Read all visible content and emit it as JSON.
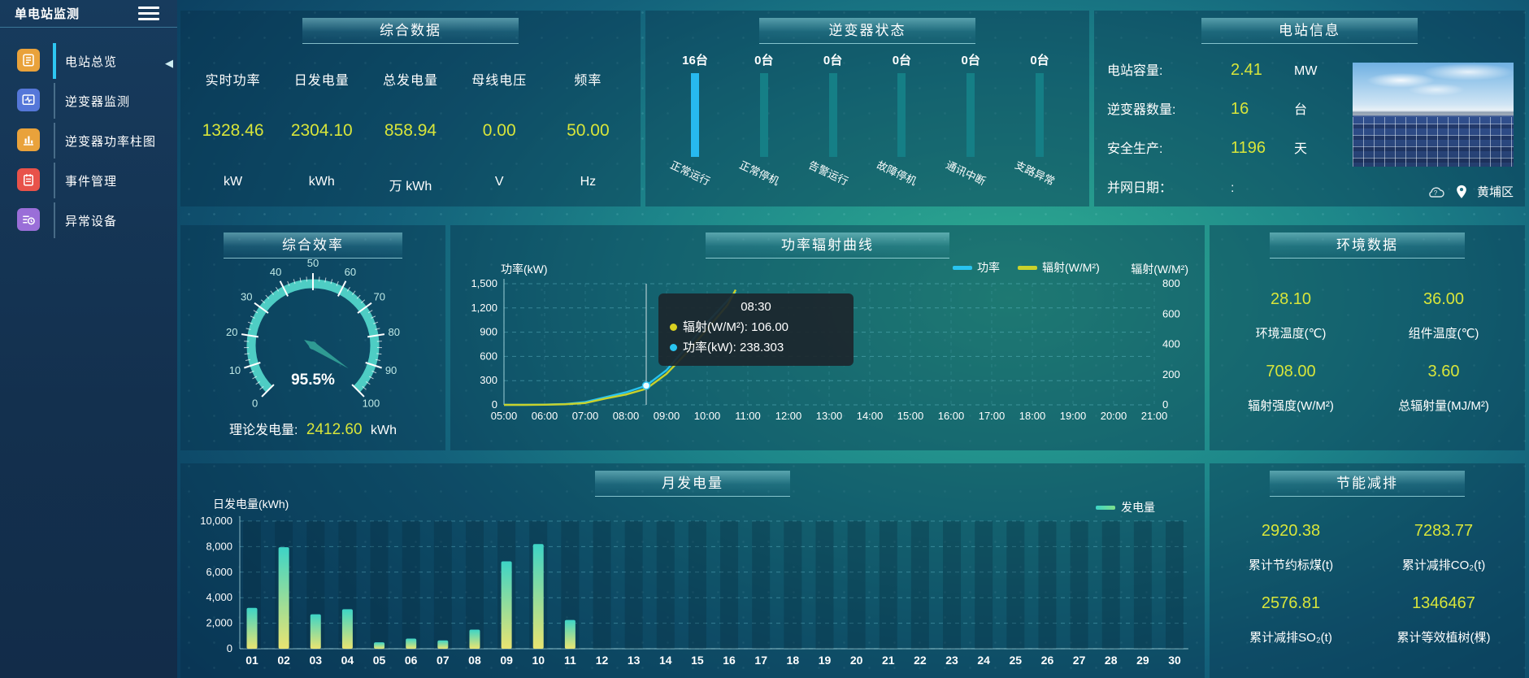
{
  "app": {
    "title": "单电站监测"
  },
  "sidebar": {
    "items": [
      {
        "label": "电站总览",
        "icon": "overview",
        "color": "#e9a23b",
        "active": true
      },
      {
        "label": "逆变器监测",
        "icon": "inverter-monitor",
        "color": "#5577d9",
        "active": false
      },
      {
        "label": "逆变器功率柱图",
        "icon": "power-bars",
        "color": "#e9a23b",
        "active": false
      },
      {
        "label": "事件管理",
        "icon": "events",
        "color": "#e8524a",
        "active": false
      },
      {
        "label": "异常设备",
        "icon": "abnormal-devices",
        "color": "#9a6ed8",
        "active": false
      }
    ]
  },
  "colors": {
    "accent_cyan": "#29c4f0",
    "value_yellow": "#d8e53a",
    "inverter_idle": "#157f86",
    "inverter_active": "#27b9ef",
    "gauge": "#4ecdc4",
    "line_power": "#29c4f0",
    "line_radiation": "#c9d22b",
    "bar_gradient_top": "#3dd4c6",
    "bar_gradient_bottom": "#e9e471",
    "tooltip_dot_radiation": "#d9d021",
    "tooltip_dot_power": "#29c4f0"
  },
  "panels": {
    "summary": {
      "title": "综合数据",
      "metrics": [
        {
          "label": "实时功率",
          "value": "1328.46",
          "unit": "kW"
        },
        {
          "label": "日发电量",
          "value": "2304.10",
          "unit": "kWh"
        },
        {
          "label": "总发电量",
          "value": "858.94",
          "unit": "万 kWh"
        },
        {
          "label": "母线电压",
          "value": "0.00",
          "unit": "V"
        },
        {
          "label": "频率",
          "value": "50.00",
          "unit": "Hz"
        }
      ]
    },
    "inverter_status": {
      "title": "逆变器状态",
      "items": [
        {
          "count": "16台",
          "label": "正常运行",
          "highlight": true
        },
        {
          "count": "0台",
          "label": "正常停机",
          "highlight": false
        },
        {
          "count": "0台",
          "label": "告警运行",
          "highlight": false
        },
        {
          "count": "0台",
          "label": "故障停机",
          "highlight": false
        },
        {
          "count": "0台",
          "label": "通讯中断",
          "highlight": false
        },
        {
          "count": "0台",
          "label": "支路异常",
          "highlight": false
        }
      ]
    },
    "station_info": {
      "title": "电站信息",
      "rows": [
        {
          "label": "电站容量:",
          "value": "2.41",
          "unit": "MW",
          "plain": false
        },
        {
          "label": "逆变器数量:",
          "value": "16",
          "unit": "台",
          "plain": false
        },
        {
          "label": "安全生产:",
          "value": "1196",
          "unit": "天",
          "plain": false
        },
        {
          "label": "并网日期：",
          "value": ":",
          "unit": "",
          "plain": true
        }
      ],
      "location": "黄埔区"
    },
    "efficiency": {
      "title": "综合效率",
      "footer_label": "理论发电量:",
      "footer_value": "2412.60",
      "footer_unit": "kWh"
    },
    "power_curve": {
      "title": "功率辐射曲线",
      "left_axis_name": "功率(kW)",
      "right_axis_name": "辐射(W/M²)",
      "tooltip": {
        "time": "08:30",
        "rows": [
          {
            "name": "辐射(W/M²)",
            "value": "106.00"
          },
          {
            "name": "功率(kW)",
            "value": "238.303"
          }
        ]
      }
    },
    "environment": {
      "title": "环境数据",
      "metrics": [
        {
          "value": "28.10",
          "label": "环境温度(℃)"
        },
        {
          "value": "36.00",
          "label": "组件温度(℃)"
        },
        {
          "value": "708.00",
          "label": "辐射强度(W/M²)"
        },
        {
          "value": "3.60",
          "label": "总辐射量(MJ/M²)"
        }
      ]
    },
    "monthly": {
      "title": "月发电量",
      "ylabel": "日发电量(kWh)",
      "legend": "发电量"
    },
    "saving": {
      "title": "节能减排",
      "metrics": [
        {
          "value": "2920.38",
          "label": "累计节约标煤(t)"
        },
        {
          "value": "7283.77",
          "label": "累计减排CO₂(t)"
        },
        {
          "value": "2576.81",
          "label": "累计减排SO₂(t)"
        },
        {
          "value": "1346467",
          "label": "累计等效植树(棵)"
        }
      ]
    }
  },
  "chart_data": [
    {
      "id": "efficiency_gauge",
      "type": "gauge",
      "title": "综合效率",
      "value": 95.5,
      "unit": "%",
      "min": 0,
      "max": 100,
      "tick_step": 10
    },
    {
      "id": "power_radiation",
      "type": "line",
      "title": "功率辐射曲线",
      "x_ticks": [
        "05:00",
        "06:00",
        "07:00",
        "08:00",
        "09:00",
        "10:00",
        "11:00",
        "12:00",
        "13:00",
        "14:00",
        "15:00",
        "16:00",
        "17:00",
        "18:00",
        "19:00",
        "20:00",
        "21:00"
      ],
      "x_range_hours": [
        5,
        21
      ],
      "left_axis": {
        "name": "功率(kW)",
        "min": 0,
        "max": 1500,
        "ticks": [
          0,
          300,
          600,
          900,
          1200,
          1500
        ]
      },
      "right_axis": {
        "name": "辐射(W/M²)",
        "min": 0,
        "max": 800,
        "ticks": [
          0,
          200,
          400,
          600,
          800
        ]
      },
      "legend_position": "top-right",
      "grid": true,
      "series": [
        {
          "name": "功率",
          "axis": "left",
          "points": [
            [
              5,
              0
            ],
            [
              5.5,
              1
            ],
            [
              6,
              3
            ],
            [
              6.5,
              10
            ],
            [
              7,
              35
            ],
            [
              7.5,
              95
            ],
            [
              8,
              155
            ],
            [
              8.5,
              238.303
            ],
            [
              9,
              430
            ],
            [
              9.5,
              720
            ],
            [
              10,
              1020
            ],
            [
              10.5,
              1290
            ],
            [
              10.7,
              1400
            ]
          ]
        },
        {
          "name": "辐射(W/M²)",
          "axis": "right",
          "points": [
            [
              5,
              0
            ],
            [
              5.5,
              0
            ],
            [
              6,
              1
            ],
            [
              6.5,
              4
            ],
            [
              7,
              12
            ],
            [
              7.5,
              42
            ],
            [
              8,
              68
            ],
            [
              8.5,
              106
            ],
            [
              9,
              205
            ],
            [
              9.5,
              345
            ],
            [
              10,
              500
            ],
            [
              10.5,
              660
            ],
            [
              10.7,
              760
            ]
          ]
        }
      ],
      "hover": {
        "x": 8.5,
        "power": 238.303,
        "radiation": 106.0
      }
    },
    {
      "id": "monthly_energy",
      "type": "bar",
      "title": "月发电量",
      "ylabel": "日发电量(kWh)",
      "ylim": [
        0,
        10000
      ],
      "yticks": [
        0,
        2000,
        4000,
        6000,
        8000,
        10000
      ],
      "categories": [
        "01",
        "02",
        "03",
        "04",
        "05",
        "06",
        "07",
        "08",
        "09",
        "10",
        "11",
        "12",
        "13",
        "14",
        "15",
        "16",
        "17",
        "18",
        "19",
        "20",
        "21",
        "22",
        "23",
        "24",
        "25",
        "26",
        "27",
        "28",
        "29",
        "30"
      ],
      "series": [
        {
          "name": "发电量",
          "values": [
            3200,
            7950,
            2700,
            3100,
            500,
            800,
            650,
            1500,
            6850,
            8200,
            2250,
            0,
            0,
            0,
            0,
            0,
            0,
            0,
            0,
            0,
            0,
            0,
            0,
            0,
            0,
            0,
            0,
            0,
            0,
            0
          ]
        }
      ],
      "legend_position": "top-right",
      "grid": true
    },
    {
      "id": "inverter_status",
      "type": "bar",
      "categories": [
        "正常运行",
        "正常停机",
        "告警运行",
        "故障停机",
        "通讯中断",
        "支路异常"
      ],
      "values": [
        16,
        0,
        0,
        0,
        0,
        0
      ]
    }
  ]
}
